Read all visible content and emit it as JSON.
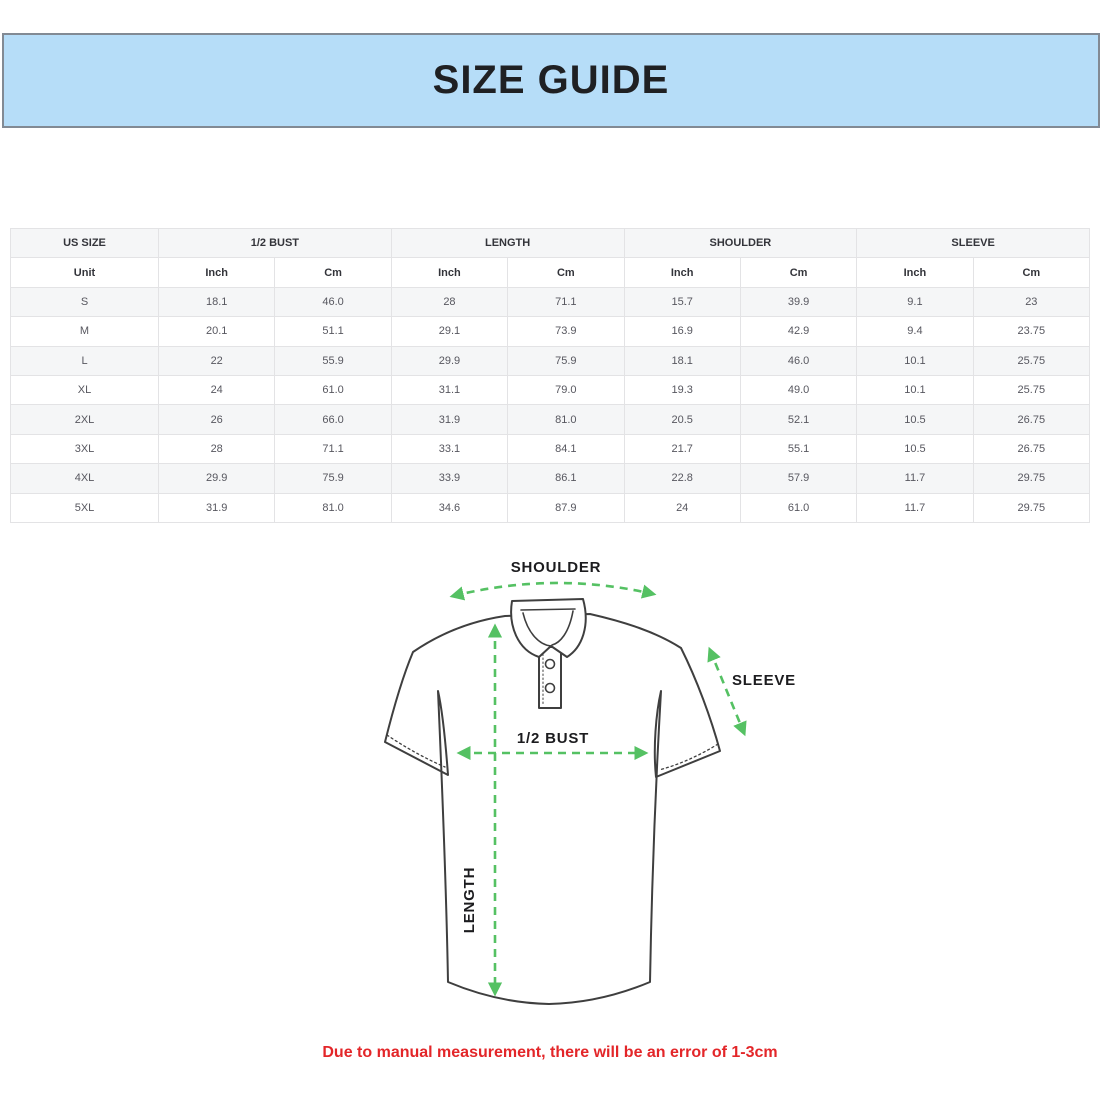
{
  "header": {
    "title": "SIZE GUIDE"
  },
  "table": {
    "groups": [
      {
        "label": "US SIZE",
        "span": 1
      },
      {
        "label": "1/2 BUST",
        "span": 2
      },
      {
        "label": "LENGTH",
        "span": 2
      },
      {
        "label": "SHOULDER",
        "span": 2
      },
      {
        "label": "SLEEVE",
        "span": 2
      }
    ],
    "unit_row": [
      "Unit",
      "Inch",
      "Cm",
      "Inch",
      "Cm",
      "Inch",
      "Cm",
      "Inch",
      "Cm"
    ],
    "rows": [
      [
        "S",
        "18.1",
        "46.0",
        "28",
        "71.1",
        "15.7",
        "39.9",
        "9.1",
        "23"
      ],
      [
        "M",
        "20.1",
        "51.1",
        "29.1",
        "73.9",
        "16.9",
        "42.9",
        "9.4",
        "23.75"
      ],
      [
        "L",
        "22",
        "55.9",
        "29.9",
        "75.9",
        "18.1",
        "46.0",
        "10.1",
        "25.75"
      ],
      [
        "XL",
        "24",
        "61.0",
        "31.1",
        "79.0",
        "19.3",
        "49.0",
        "10.1",
        "25.75"
      ],
      [
        "2XL",
        "26",
        "66.0",
        "31.9",
        "81.0",
        "20.5",
        "52.1",
        "10.5",
        "26.75"
      ],
      [
        "3XL",
        "28",
        "71.1",
        "33.1",
        "84.1",
        "21.7",
        "55.1",
        "10.5",
        "26.75"
      ],
      [
        "4XL",
        "29.9",
        "75.9",
        "33.9",
        "86.1",
        "22.8",
        "57.9",
        "11.7",
        "29.75"
      ],
      [
        "5XL",
        "31.9",
        "81.0",
        "34.6",
        "87.9",
        "24",
        "61.0",
        "11.7",
        "29.75"
      ]
    ]
  },
  "diagram": {
    "labels": {
      "shoulder": "SHOULDER",
      "sleeve": "SLEEVE",
      "bust": "1/2 BUST",
      "length": "LENGTH"
    }
  },
  "note": {
    "text": "Due to manual measurement, there will be an error of 1-3cm"
  },
  "colors": {
    "banner_bg": "#b6ddf8",
    "banner_border": "#828a94",
    "arrow_green": "#55c163",
    "note_red": "#e32629",
    "stripe_gray": "#f5f6f7",
    "shirt_outline": "#3f3f3f"
  }
}
